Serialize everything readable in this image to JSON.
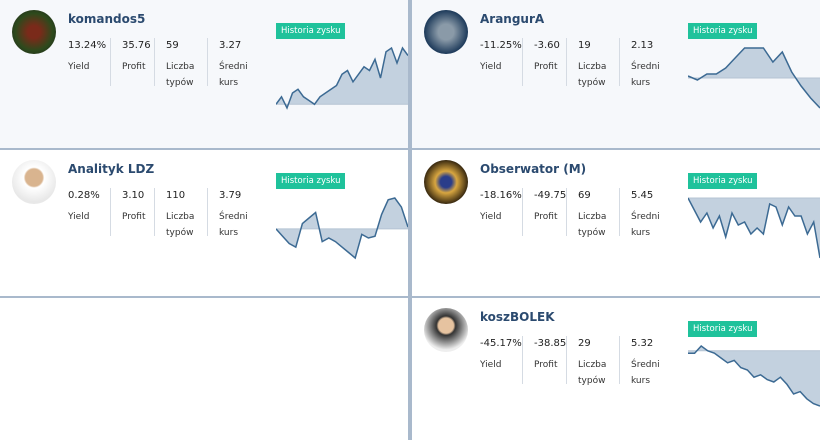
{
  "badge": "Historia zysku",
  "stat_labels": [
    "Yield",
    "Profit",
    "Liczba typów",
    "Średni kurs"
  ],
  "cards": [
    {
      "name": "komandos5",
      "stats": [
        "13.24%",
        "35.76",
        "59",
        "3.27"
      ],
      "spark": [
        0,
        2,
        -1,
        3,
        4,
        2,
        1,
        0,
        2,
        3,
        4,
        5,
        8,
        9,
        6,
        8,
        10,
        9,
        12,
        7,
        14,
        15,
        11,
        15,
        13
      ]
    },
    {
      "name": "ArangurA",
      "stats": [
        "-11.25%",
        "-3.60",
        "19",
        "2.13"
      ],
      "spark": [
        1,
        -1,
        2,
        2,
        5,
        10,
        15,
        15,
        15,
        8,
        13,
        3,
        -4,
        -10,
        -15
      ]
    },
    {
      "name": "Analityk LDZ",
      "stats": [
        "0.28%",
        "3.10",
        "110",
        "3.79"
      ],
      "spark": [
        0,
        -4,
        -8,
        -10,
        3,
        6,
        9,
        -7,
        -5,
        -7,
        -10,
        -13,
        -16,
        -3,
        -5,
        -4,
        8,
        16,
        17,
        12,
        1
      ]
    },
    {
      "name": "Obserwator (M)",
      "stats": [
        "-18.16%",
        "-49.75",
        "69",
        "5.45"
      ],
      "spark": [
        0,
        -4,
        -8,
        -5,
        -10,
        -6,
        -13,
        -5,
        -9,
        -8,
        -12,
        -10,
        -12,
        -2,
        -3,
        -9,
        -3,
        -6,
        -6,
        -12,
        -8,
        -20
      ]
    },
    {
      "name": "koszBOLEK",
      "stats": [
        "-45.17%",
        "-38.85",
        "29",
        "5.32"
      ],
      "spark": [
        -1,
        -1,
        2,
        0,
        -1,
        -3,
        -5,
        -4,
        -7,
        -8,
        -11,
        -10,
        -12,
        -13,
        -11,
        -14,
        -18,
        -17,
        -20,
        -22,
        -23
      ]
    }
  ]
}
